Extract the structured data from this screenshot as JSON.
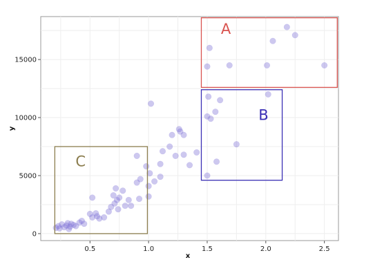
{
  "chart_data": {
    "type": "scatter",
    "xlabel": "x",
    "ylabel": "y",
    "xlim": [
      0.08,
      2.62
    ],
    "ylim": [
      -600,
      18700
    ],
    "x_ticks": [
      0.5,
      1.0,
      1.5,
      2.0,
      2.5
    ],
    "x_tick_labels": [
      "0.5",
      "1.0",
      "1.5",
      "2.0",
      "2.5"
    ],
    "y_ticks": [
      0,
      5000,
      10000,
      15000
    ],
    "y_tick_labels": [
      "0",
      "5000",
      "10000",
      "15000"
    ],
    "grid": true,
    "point_color": "#7b6fd6",
    "points": [
      {
        "x": 0.21,
        "y": 500
      },
      {
        "x": 0.23,
        "y": 650
      },
      {
        "x": 0.24,
        "y": 450
      },
      {
        "x": 0.26,
        "y": 800
      },
      {
        "x": 0.28,
        "y": 550
      },
      {
        "x": 0.3,
        "y": 700
      },
      {
        "x": 0.31,
        "y": 900
      },
      {
        "x": 0.32,
        "y": 400
      },
      {
        "x": 0.33,
        "y": 600
      },
      {
        "x": 0.34,
        "y": 850
      },
      {
        "x": 0.36,
        "y": 750
      },
      {
        "x": 0.38,
        "y": 650
      },
      {
        "x": 0.41,
        "y": 950
      },
      {
        "x": 0.43,
        "y": 1100
      },
      {
        "x": 0.45,
        "y": 850
      },
      {
        "x": 0.5,
        "y": 1700
      },
      {
        "x": 0.52,
        "y": 1400
      },
      {
        "x": 0.52,
        "y": 3100
      },
      {
        "x": 0.55,
        "y": 1750
      },
      {
        "x": 0.56,
        "y": 1500
      },
      {
        "x": 0.58,
        "y": 1300
      },
      {
        "x": 0.62,
        "y": 1400
      },
      {
        "x": 0.66,
        "y": 1900
      },
      {
        "x": 0.68,
        "y": 2300
      },
      {
        "x": 0.7,
        "y": 3300
      },
      {
        "x": 0.71,
        "y": 2600
      },
      {
        "x": 0.72,
        "y": 3900
      },
      {
        "x": 0.73,
        "y": 2900
      },
      {
        "x": 0.74,
        "y": 2100
      },
      {
        "x": 0.75,
        "y": 3100
      },
      {
        "x": 0.78,
        "y": 3700
      },
      {
        "x": 0.8,
        "y": 2400
      },
      {
        "x": 0.83,
        "y": 2900
      },
      {
        "x": 0.85,
        "y": 2400
      },
      {
        "x": 0.9,
        "y": 4400
      },
      {
        "x": 0.9,
        "y": 6700
      },
      {
        "x": 0.92,
        "y": 3000
      },
      {
        "x": 0.93,
        "y": 4700
      },
      {
        "x": 0.98,
        "y": 5800
      },
      {
        "x": 1.0,
        "y": 4100
      },
      {
        "x": 1.0,
        "y": 3200
      },
      {
        "x": 1.01,
        "y": 5200
      },
      {
        "x": 1.02,
        "y": 11200
      },
      {
        "x": 1.05,
        "y": 4500
      },
      {
        "x": 1.1,
        "y": 4900
      },
      {
        "x": 1.1,
        "y": 6000
      },
      {
        "x": 1.12,
        "y": 7100
      },
      {
        "x": 1.18,
        "y": 7500
      },
      {
        "x": 1.2,
        "y": 8500
      },
      {
        "x": 1.23,
        "y": 6700
      },
      {
        "x": 1.26,
        "y": 9000
      },
      {
        "x": 1.27,
        "y": 8800
      },
      {
        "x": 1.3,
        "y": 6800
      },
      {
        "x": 1.3,
        "y": 8500
      },
      {
        "x": 1.35,
        "y": 5900
      },
      {
        "x": 1.41,
        "y": 7000
      },
      {
        "x": 1.5,
        "y": 5000
      },
      {
        "x": 1.5,
        "y": 10100
      },
      {
        "x": 1.51,
        "y": 11800
      },
      {
        "x": 1.53,
        "y": 9900
      },
      {
        "x": 1.57,
        "y": 10500
      },
      {
        "x": 1.58,
        "y": 6200
      },
      {
        "x": 1.61,
        "y": 11500
      },
      {
        "x": 1.75,
        "y": 7700
      },
      {
        "x": 2.02,
        "y": 12000
      },
      {
        "x": 1.5,
        "y": 14400
      },
      {
        "x": 1.52,
        "y": 16000
      },
      {
        "x": 1.69,
        "y": 14500
      },
      {
        "x": 2.01,
        "y": 14500
      },
      {
        "x": 2.06,
        "y": 16600
      },
      {
        "x": 2.18,
        "y": 17800
      },
      {
        "x": 2.25,
        "y": 17100
      },
      {
        "x": 2.5,
        "y": 14500
      }
    ],
    "annotations": [
      {
        "label": "A",
        "color": "#d9534f",
        "x0": 1.45,
        "x1": 2.61,
        "y0": 12600,
        "y1": 18600
      },
      {
        "label": "B",
        "color": "#3a2fb5",
        "x0": 1.45,
        "x1": 2.14,
        "y0": 4600,
        "y1": 12400
      },
      {
        "label": "C",
        "color": "#8b7d4e",
        "x0": 0.2,
        "x1": 0.99,
        "y0": 0,
        "y1": 7500
      }
    ]
  }
}
